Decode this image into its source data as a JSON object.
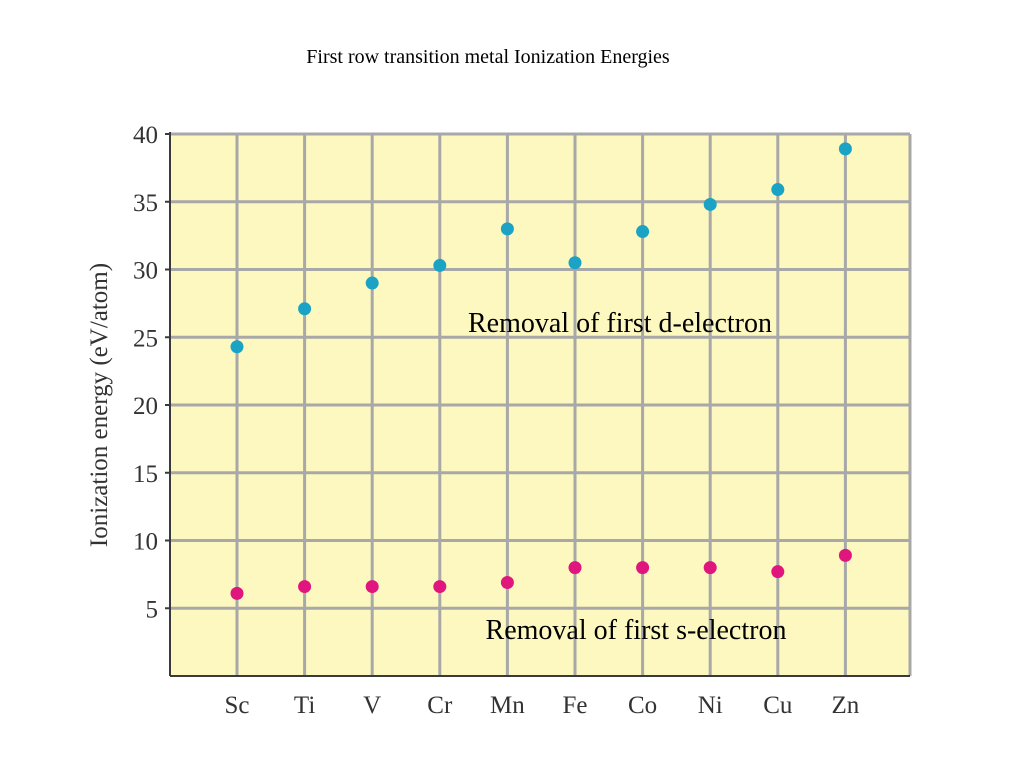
{
  "slide": {
    "title": "First row transition metal Ionization Energies"
  },
  "chart_data": {
    "type": "scatter",
    "title": "First row transition metal Ionization Energies",
    "xlabel": "",
    "ylabel": "Ionization energy (eV/atom)",
    "categories": [
      "Sc",
      "Ti",
      "V",
      "Cr",
      "Mn",
      "Fe",
      "Co",
      "Ni",
      "Cu",
      "Zn"
    ],
    "ylim": [
      0,
      40
    ],
    "yticks": [
      5,
      10,
      15,
      20,
      25,
      30,
      35,
      40
    ],
    "grid": true,
    "background_color": "#fdf8c0",
    "series": [
      {
        "color": "#1aa3c4",
        "values": [
          24.3,
          27.1,
          29.0,
          30.3,
          33.0,
          30.5,
          32.8,
          34.8,
          35.9,
          38.9
        ]
      },
      {
        "color": "#e0157d",
        "values": [
          6.1,
          6.6,
          6.6,
          6.6,
          6.9,
          8.0,
          8.0,
          8.0,
          7.7,
          8.9
        ]
      }
    ],
    "annotations": [
      {
        "text": "Removal of first d-electron"
      },
      {
        "text": "Removal of first s-electron"
      }
    ]
  }
}
